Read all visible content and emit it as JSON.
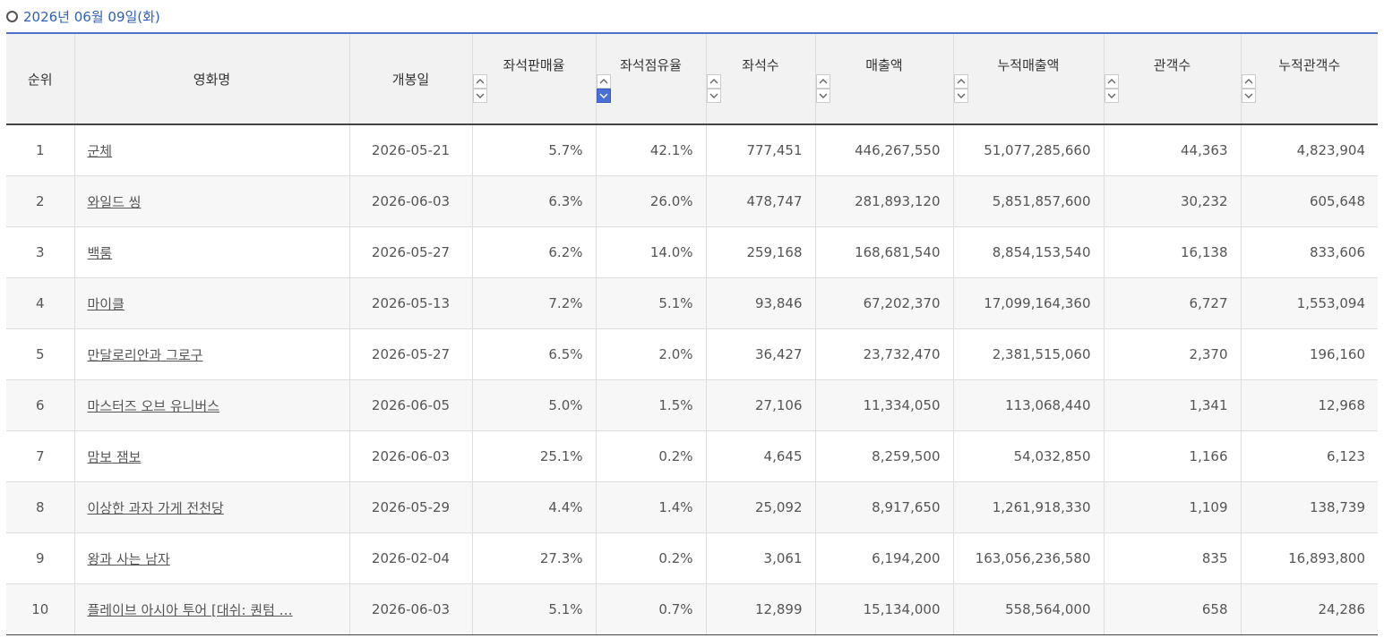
{
  "title": "2026년 06월 09일(화)",
  "table": {
    "headers": [
      {
        "label": "순위"
      },
      {
        "label": "영화명"
      },
      {
        "label": "개봉일"
      },
      {
        "label": "좌석판매율",
        "sortable": true
      },
      {
        "label": "좌석점유율",
        "sortable": true
      },
      {
        "label": "좌석수",
        "sortable": true
      },
      {
        "label": "매출액",
        "sortable": true
      },
      {
        "label": "누적매출액",
        "sortable": true
      },
      {
        "label": "관객수",
        "sortable": true
      },
      {
        "label": "누적관객수",
        "sortable": true
      }
    ],
    "sort": {
      "column": 4,
      "direction": "down"
    },
    "rows": [
      [
        "1",
        "군체",
        "2026-05-21",
        "5.7%",
        "42.1%",
        "777,451",
        "446,267,550",
        "51,077,285,660",
        "44,363",
        "4,823,904"
      ],
      [
        "2",
        "와일드 씽",
        "2026-06-03",
        "6.3%",
        "26.0%",
        "478,747",
        "281,893,120",
        "5,851,857,600",
        "30,232",
        "605,648"
      ],
      [
        "3",
        "백룸",
        "2026-05-27",
        "6.2%",
        "14.0%",
        "259,168",
        "168,681,540",
        "8,854,153,540",
        "16,138",
        "833,606"
      ],
      [
        "4",
        "마이클",
        "2026-05-13",
        "7.2%",
        "5.1%",
        "93,846",
        "67,202,370",
        "17,099,164,360",
        "6,727",
        "1,553,094"
      ],
      [
        "5",
        "만달로리안과 그로구",
        "2026-05-27",
        "6.5%",
        "2.0%",
        "36,427",
        "23,732,470",
        "2,381,515,060",
        "2,370",
        "196,160"
      ],
      [
        "6",
        "마스터즈 오브 유니버스",
        "2026-06-05",
        "5.0%",
        "1.5%",
        "27,106",
        "11,334,050",
        "113,068,440",
        "1,341",
        "12,968"
      ],
      [
        "7",
        "맘보 잼보",
        "2026-06-03",
        "25.1%",
        "0.2%",
        "4,645",
        "8,259,500",
        "54,032,850",
        "1,166",
        "6,123"
      ],
      [
        "8",
        "이상한 과자 가게 전천당",
        "2026-05-29",
        "4.4%",
        "1.4%",
        "25,092",
        "8,917,650",
        "1,261,918,330",
        "1,109",
        "138,739"
      ],
      [
        "9",
        "왕과 사는 남자",
        "2026-02-04",
        "27.3%",
        "0.2%",
        "3,061",
        "6,194,200",
        "163,056,236,580",
        "835",
        "16,893,800"
      ],
      [
        "10",
        "플레이브 아시아 투어 [대쉬: 퀀텀 …",
        "2026-06-03",
        "5.1%",
        "0.7%",
        "12,899",
        "15,134,000",
        "558,564,000",
        "658",
        "24,286"
      ]
    ]
  }
}
